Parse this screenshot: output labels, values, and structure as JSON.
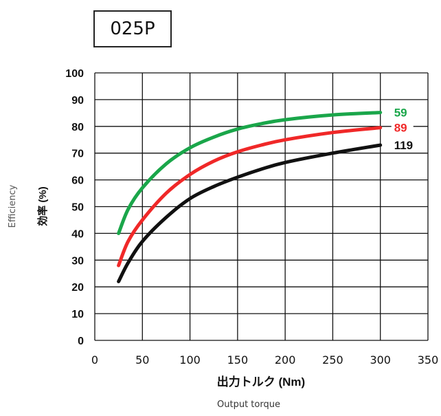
{
  "chart_data": {
    "type": "line",
    "title": "025P",
    "xlabel": "出力トルク (Nm)",
    "xlabel_en": "Output torque",
    "ylabel": "効率 (%)",
    "ylabel_en": "Efficiency",
    "xlim": [
      0,
      350
    ],
    "ylim": [
      0,
      100
    ],
    "xticks": [
      0,
      50,
      100,
      150,
      200,
      250,
      300,
      350
    ],
    "yticks": [
      0,
      10,
      20,
      30,
      40,
      50,
      60,
      70,
      80,
      90,
      100
    ],
    "grid": true,
    "series": [
      {
        "name": "59",
        "color": "#1aa64a",
        "x": [
          25,
          35,
          50,
          75,
          100,
          125,
          150,
          175,
          200,
          250,
          300
        ],
        "y": [
          40,
          49,
          57,
          66,
          72,
          76,
          79,
          81,
          82.5,
          84.3,
          85.2
        ]
      },
      {
        "name": "89",
        "color": "#f02828",
        "x": [
          25,
          35,
          50,
          75,
          100,
          125,
          150,
          175,
          200,
          250,
          300
        ],
        "y": [
          28,
          37,
          45,
          55,
          62,
          67,
          70.5,
          73,
          75,
          77.7,
          79.5
        ]
      },
      {
        "name": "119",
        "color": "#111111",
        "x": [
          25,
          35,
          50,
          75,
          100,
          125,
          150,
          175,
          200,
          250,
          300
        ],
        "y": [
          22,
          29,
          37,
          46,
          53,
          57.5,
          61,
          64,
          66.5,
          70,
          73
        ]
      }
    ]
  }
}
